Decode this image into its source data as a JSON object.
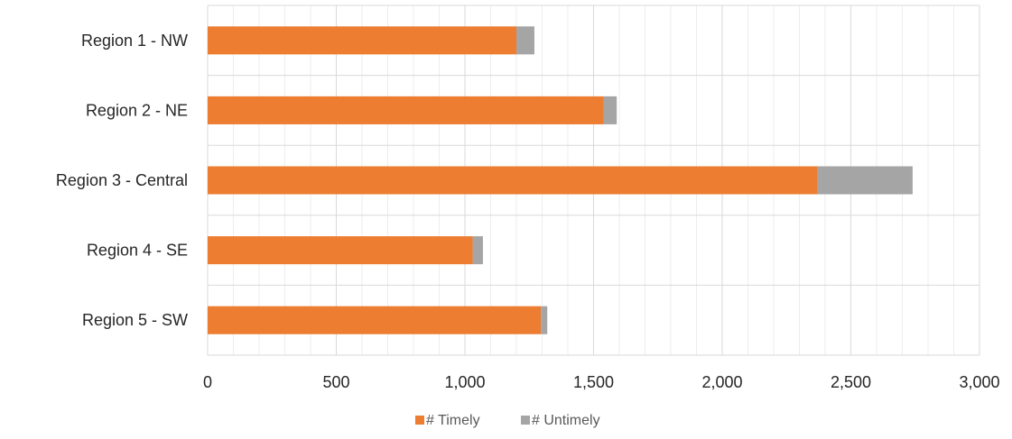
{
  "chart_data": {
    "type": "bar",
    "orientation": "horizontal",
    "stacked": true,
    "categories": [
      "Region 1 - NW",
      "Region 2 - NE",
      "Region 3 - Central",
      "Region 4 - SE",
      "Region 5 - SW"
    ],
    "series": [
      {
        "name": "# Timely",
        "values": [
          1200,
          1540,
          2370,
          1030,
          1295
        ],
        "color": "#ED7D31"
      },
      {
        "name": "# Untimely",
        "values": [
          70,
          50,
          370,
          40,
          25
        ],
        "color": "#A5A5A5"
      }
    ],
    "xlim": [
      0,
      3000
    ],
    "xticks": [
      0,
      500,
      1000,
      1500,
      2000,
      2500,
      3000
    ],
    "xtick_labels": [
      "0",
      "500",
      "1,000",
      "1,500",
      "2,000",
      "2,500",
      "3,000"
    ],
    "grid": {
      "major": true,
      "minor": true
    },
    "legend_position": "bottom"
  }
}
